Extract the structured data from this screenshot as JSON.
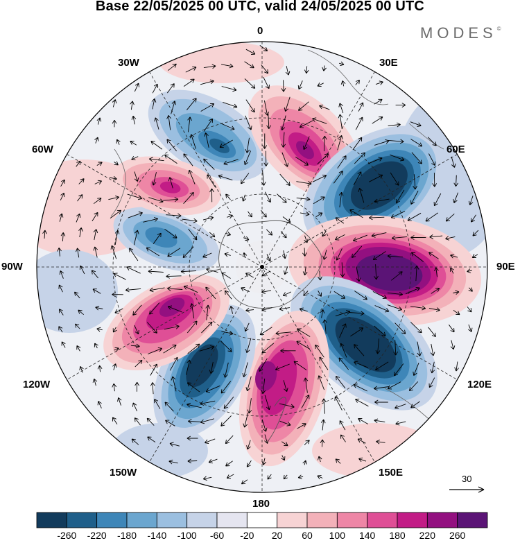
{
  "header": {
    "title": "Base 22/05/2025 00 UTC, valid 24/05/2025 00 UTC",
    "brand": "MODES",
    "brand_mark": "©"
  },
  "map": {
    "projection": "south-polar-stereographic",
    "longitude_labels": {
      "lon_0": "0",
      "lon_30e": "30E",
      "lon_60e": "60E",
      "lon_90e": "90E",
      "lon_120e": "120E",
      "lon_150e": "150E",
      "lon_180": "180",
      "lon_150w": "150W",
      "lon_120w": "120W",
      "lon_90w": "90W",
      "lon_60w": "60W",
      "lon_30w": "30W"
    },
    "wind_reference": {
      "label": "30"
    }
  },
  "colorbar": {
    "colors": [
      "#123b5c",
      "#1f5f8a",
      "#3e86b8",
      "#6ba6cf",
      "#9bbfe0",
      "#c6d3e8",
      "#e5e5f0",
      "#ffffff",
      "#f7d3d4",
      "#f3b1b9",
      "#ee86a6",
      "#df4f96",
      "#c21c86",
      "#931080",
      "#5b1476"
    ],
    "labels": [
      "-260",
      "-220",
      "-180",
      "-140",
      "-100",
      "-60",
      "-20",
      "20",
      "60",
      "100",
      "140",
      "180",
      "220",
      "260"
    ]
  }
}
